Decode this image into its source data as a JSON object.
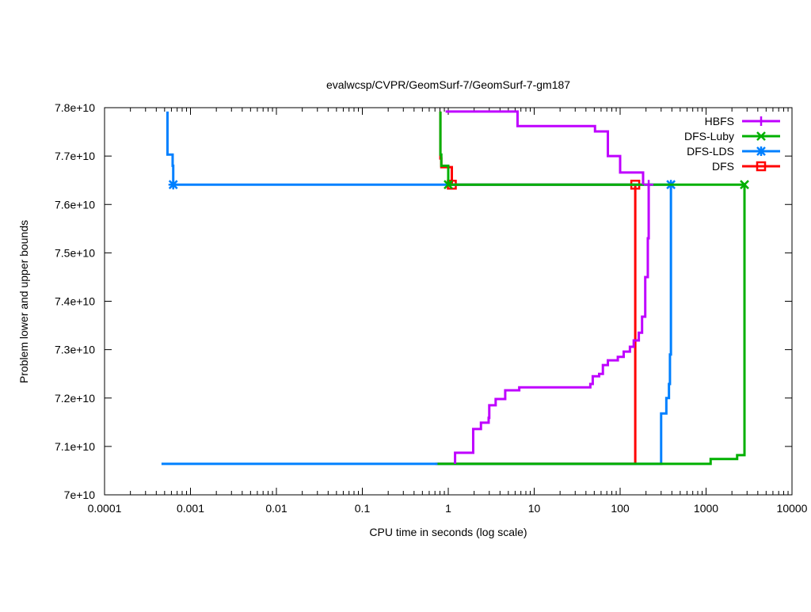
{
  "chart_data": {
    "type": "line",
    "title": "evalwcsp/CVPR/GeomSurf-7/GeomSurf-7-gm187",
    "xlabel": "CPU time in seconds (log scale)",
    "ylabel": "Problem lower and upper bounds",
    "xscale": "log",
    "xlim": [
      0.0001,
      10000
    ],
    "ylim": [
      70000000000.0,
      78000000000.0
    ],
    "xticks": [
      {
        "v": 0.0001,
        "label": "0.0001"
      },
      {
        "v": 0.001,
        "label": "0.001"
      },
      {
        "v": 0.01,
        "label": "0.01"
      },
      {
        "v": 0.1,
        "label": "0.1"
      },
      {
        "v": 1,
        "label": "1"
      },
      {
        "v": 10,
        "label": "10"
      },
      {
        "v": 100,
        "label": "100"
      },
      {
        "v": 1000,
        "label": "1000"
      },
      {
        "v": 10000,
        "label": "10000"
      }
    ],
    "yticks": [
      {
        "v": 70000000000.0,
        "label": "7e+10"
      },
      {
        "v": 71000000000.0,
        "label": "7.1e+10"
      },
      {
        "v": 72000000000.0,
        "label": "7.2e+10"
      },
      {
        "v": 73000000000.0,
        "label": "7.3e+10"
      },
      {
        "v": 74000000000.0,
        "label": "7.4e+10"
      },
      {
        "v": 75000000000.0,
        "label": "7.5e+10"
      },
      {
        "v": 76000000000.0,
        "label": "7.6e+10"
      },
      {
        "v": 77000000000.0,
        "label": "7.7e+10"
      },
      {
        "v": 78000000000.0,
        "label": "7.8e+10"
      }
    ],
    "legend": "top-right",
    "series": [
      {
        "name": "HBFS",
        "color": "#bf00ff",
        "marker": "plus",
        "upper": [
          [
            0.93,
            77920000000.0
          ],
          [
            6.4,
            77620000000.0
          ],
          [
            51,
            77510000000.0
          ],
          [
            72,
            77000000000.0
          ],
          [
            100,
            76660000000.0
          ],
          [
            185,
            76410000000.0
          ]
        ],
        "lower": [
          [
            1.2,
            70640000000.0
          ],
          [
            1.2,
            70870000000.0
          ],
          [
            1.95,
            71360000000.0
          ],
          [
            2.4,
            71490000000.0
          ],
          [
            2.95,
            71590000000.0
          ],
          [
            3.0,
            71850000000.0
          ],
          [
            3.56,
            71980000000.0
          ],
          [
            4.6,
            72160000000.0
          ],
          [
            6.7,
            72220000000.0
          ],
          [
            45,
            72290000000.0
          ],
          [
            48,
            72450000000.0
          ],
          [
            57,
            72500000000.0
          ],
          [
            63,
            72680000000.0
          ],
          [
            72,
            72780000000.0
          ],
          [
            94,
            72850000000.0
          ],
          [
            110,
            72960000000.0
          ],
          [
            130,
            73060000000.0
          ],
          [
            144,
            73190000000.0
          ],
          [
            165,
            73350000000.0
          ],
          [
            180,
            73680000000.0
          ],
          [
            196,
            74500000000.0
          ],
          [
            210,
            75300000000.0
          ],
          [
            215,
            76410000000.0
          ]
        ],
        "markers": [
          [
            215,
            76410000000.0
          ]
        ]
      },
      {
        "name": "DFS-Luby",
        "color": "#00b000",
        "marker": "x",
        "upper": [
          [
            0.81,
            77920000000.0
          ],
          [
            0.81,
            77030000000.0
          ],
          [
            0.83,
            76800000000.0
          ],
          [
            1.0,
            76410000000.0
          ],
          [
            2800,
            76410000000.0
          ]
        ],
        "lower": [
          [
            0.75,
            70640000000.0
          ],
          [
            1130,
            70740000000.0
          ],
          [
            2300,
            70820000000.0
          ],
          [
            2800,
            76410000000.0
          ]
        ],
        "markers": [
          [
            1.0,
            76410000000.0
          ],
          [
            2800,
            76410000000.0
          ]
        ]
      },
      {
        "name": "DFS-LDS",
        "color": "#0080ff",
        "marker": "star",
        "upper": [
          [
            0.00054,
            77920000000.0
          ],
          [
            0.00054,
            77030000000.0
          ],
          [
            0.00062,
            76800000000.0
          ],
          [
            0.00063,
            76410000000.0
          ],
          [
            390,
            76410000000.0
          ]
        ],
        "lower": [
          [
            0.00046,
            70640000000.0
          ],
          [
            300,
            71680000000.0
          ],
          [
            345,
            72000000000.0
          ],
          [
            370,
            72290000000.0
          ],
          [
            380,
            72900000000.0
          ],
          [
            390,
            76410000000.0
          ]
        ],
        "markers": [
          [
            0.00063,
            76410000000.0
          ],
          [
            390,
            76410000000.0
          ]
        ]
      },
      {
        "name": "DFS",
        "color": "#ff0000",
        "marker": "square",
        "upper": [
          [
            0.81,
            77920000000.0
          ],
          [
            0.81,
            76950000000.0
          ],
          [
            0.83,
            76770000000.0
          ],
          [
            1.1,
            76410000000.0
          ],
          [
            150,
            76410000000.0
          ]
        ],
        "lower": [
          [
            0.71,
            70640000000.0
          ],
          [
            150,
            76410000000.0
          ]
        ],
        "markers": [
          [
            1.1,
            76410000000.0
          ],
          [
            150,
            76410000000.0
          ]
        ]
      }
    ]
  }
}
